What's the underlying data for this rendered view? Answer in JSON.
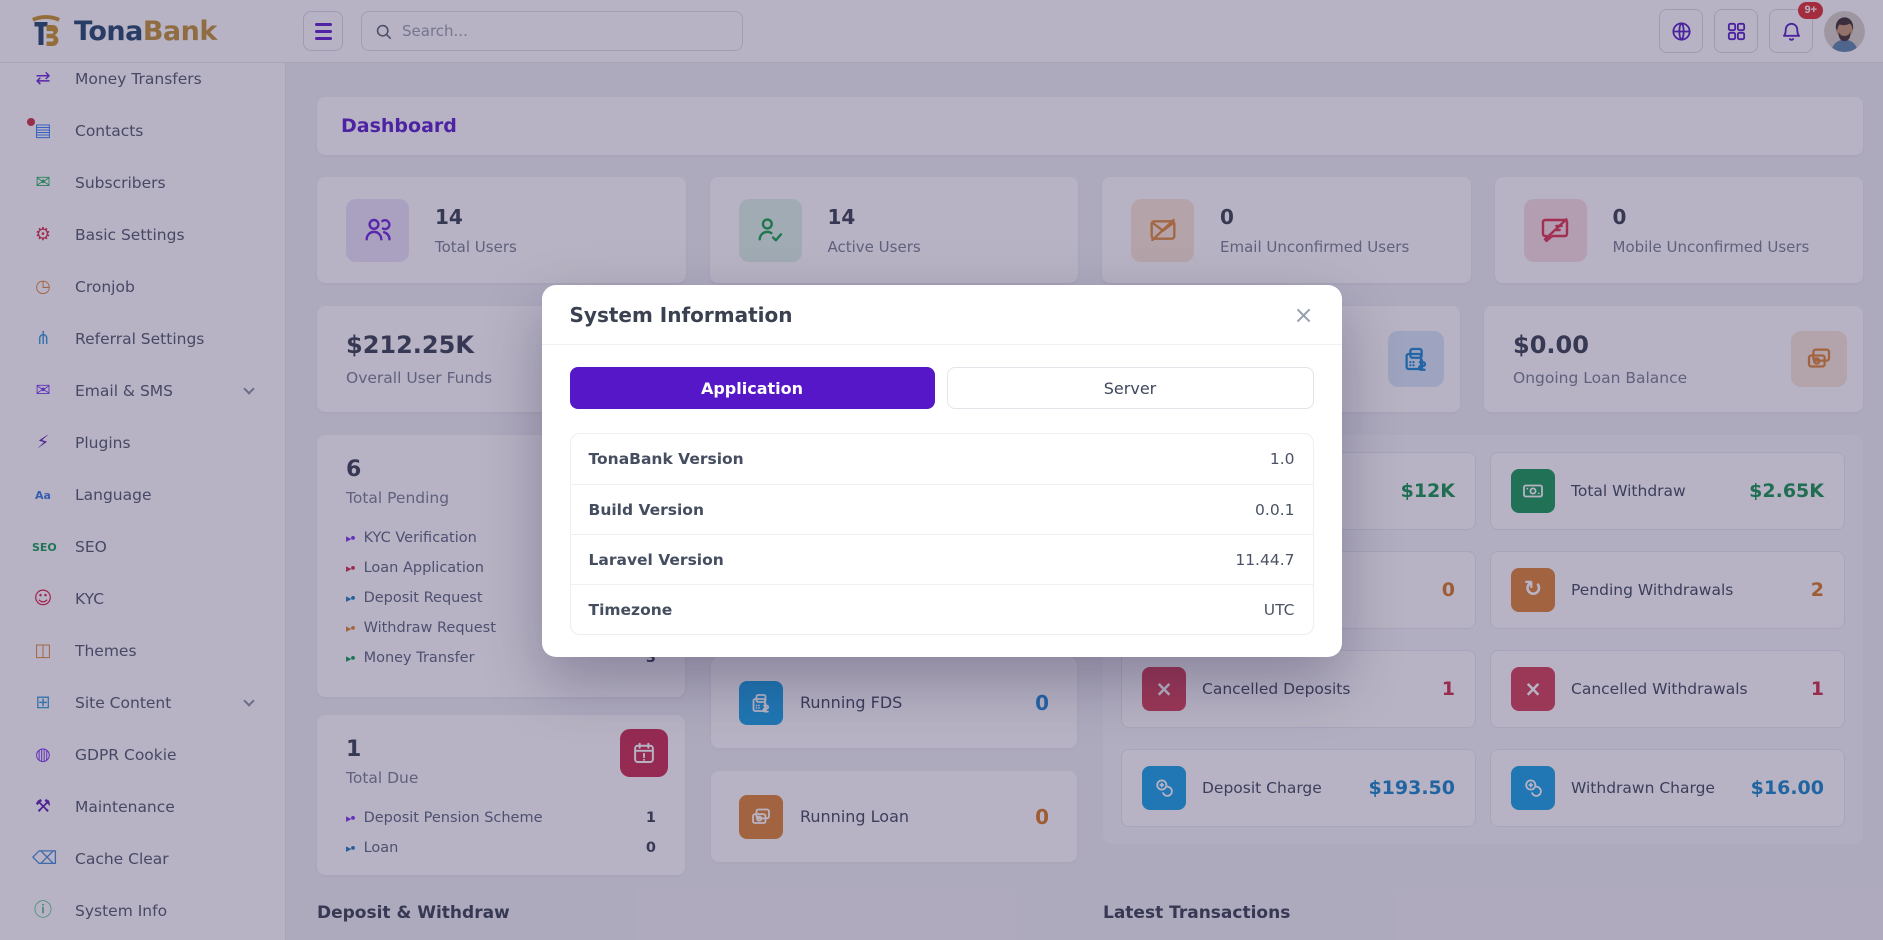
{
  "header": {
    "brand": {
      "name_primary": "Tona",
      "name_secondary": "Bank"
    },
    "search_placeholder": "Search...",
    "notification_badge": "9+",
    "action_icons": [
      "globe-icon",
      "apps-grid-icon",
      "bell-icon",
      "avatar"
    ]
  },
  "sidebar": {
    "items": [
      {
        "label": "Money Transfers",
        "icon": "money-transfers-icon",
        "glyph": "⇄",
        "color": "#6d28d9"
      },
      {
        "label": "Contacts",
        "icon": "contacts-icon",
        "glyph": "▤",
        "color": "#3b82f6",
        "has_dot": true
      },
      {
        "label": "Subscribers",
        "icon": "subscribers-icon",
        "glyph": "✉",
        "color": "#22b35e"
      },
      {
        "label": "Basic Settings",
        "icon": "settings-gear-icon",
        "glyph": "⚙",
        "color": "#d93450"
      },
      {
        "label": "Cronjob",
        "icon": "cronjob-clock-icon",
        "glyph": "◷",
        "color": "#e08a3c"
      },
      {
        "label": "Referral Settings",
        "icon": "referral-icon",
        "glyph": "⋔",
        "color": "#3b9fdc"
      },
      {
        "label": "Email & SMS",
        "icon": "email-sms-icon",
        "glyph": "✉",
        "color": "#7c3aed",
        "has_chevron": true
      },
      {
        "label": "Plugins",
        "icon": "plugins-icon",
        "glyph": "⚡",
        "color": "#5b21b6"
      },
      {
        "label": "Language",
        "icon": "language-icon",
        "glyph": "Aa",
        "color": "#3b7ddd",
        "small_text": true
      },
      {
        "label": "SEO",
        "icon": "seo-icon",
        "glyph": "SEO",
        "color": "#18a058",
        "small_text": true
      },
      {
        "label": "KYC",
        "icon": "kyc-face-icon",
        "glyph": "☺",
        "color": "#e11d48"
      },
      {
        "label": "Themes",
        "icon": "themes-icon",
        "glyph": "◫",
        "color": "#e08a3c"
      },
      {
        "label": "Site Content",
        "icon": "site-content-icon",
        "glyph": "⊞",
        "color": "#3b9fdc",
        "has_chevron": true
      },
      {
        "label": "GDPR Cookie",
        "icon": "cookie-icon",
        "glyph": "◍",
        "color": "#7c3aed"
      },
      {
        "label": "Maintenance",
        "icon": "maintenance-wrench-icon",
        "glyph": "⚒",
        "color": "#5b21b6"
      },
      {
        "label": "Cache Clear",
        "icon": "cache-clear-icon",
        "glyph": "⌫",
        "color": "#4a90d9"
      },
      {
        "label": "System Info",
        "icon": "system-info-icon",
        "glyph": "ⓘ",
        "color": "#22b35e"
      }
    ]
  },
  "breadcrumb": {
    "title": "Dashboard"
  },
  "stats_row": [
    {
      "value": "14",
      "label": "Total Users",
      "icon": "users-icon",
      "icon_bg": "#ece4f9",
      "icon_color": "#6d28d9"
    },
    {
      "value": "14",
      "label": "Active Users",
      "icon": "user-check-icon",
      "icon_bg": "#dcf3e6",
      "icon_color": "#16a34a"
    },
    {
      "value": "0",
      "label": "Email Unconfirmed Users",
      "icon": "email-slash-icon",
      "icon_bg": "#fbe9d8",
      "icon_color": "#e08a3c"
    },
    {
      "value": "0",
      "label": "Mobile Unconfirmed Users",
      "icon": "sms-slash-icon",
      "icon_bg": "#f9dde2",
      "icon_color": "#dc3550"
    }
  ],
  "funds_row": {
    "left": {
      "value": "$212.25K",
      "label": "Overall User Funds",
      "icon": "safebox-dollar-icon",
      "icon_bg": "#d9e9f8",
      "icon_color": "#1b87d2"
    },
    "right": {
      "value": "$0.00",
      "label": "Ongoing Loan Balance",
      "icon": "wallet-icon",
      "icon_bg": "#f9e8d9",
      "icon_color": "#dd8435"
    }
  },
  "pending_card": {
    "value": "6",
    "label": "Total Pending",
    "items": [
      {
        "label": "KYC Verification",
        "value": "",
        "bullet_color": "#7c3aed"
      },
      {
        "label": "Loan Application",
        "value": "",
        "bullet_color": "#d03050"
      },
      {
        "label": "Deposit Request",
        "value": "",
        "bullet_color": "#2080c0"
      },
      {
        "label": "Withdraw Request",
        "value": "",
        "bullet_color": "#df8a30"
      },
      {
        "label": "Money Transfer",
        "value": "3",
        "bullet_color": "#18a058"
      }
    ]
  },
  "due_card": {
    "value": "1",
    "label": "Total Due",
    "icon": "calendar-due-icon",
    "icon_bg": "#cb2e51",
    "items": [
      {
        "label": "Deposit Pension Scheme",
        "value": "1",
        "bullet_color": "#7c3aed"
      },
      {
        "label": "Loan",
        "value": "0",
        "bullet_color": "#2080c0"
      }
    ]
  },
  "running_cards": [
    {
      "label": "Running FDS",
      "value": "0",
      "value_color": "#1f87d6",
      "icon": "safebox-dollar-icon",
      "icon_bg": "#17a3e5"
    },
    {
      "label": "Running Loan",
      "value": "0",
      "value_color": "#d97a1f",
      "icon": "wallet-icon",
      "icon_bg": "#dd8435"
    }
  ],
  "summary": {
    "columns": [
      {
        "cards": [
          {
            "icon": "",
            "label": "",
            "value": "$12K",
            "value_color": "#17954f",
            "icon_bg": ""
          },
          {
            "icon": "",
            "label": "",
            "value": "0",
            "value_color": "#d97a1f",
            "icon_bg": ""
          },
          {
            "icon": "x-icon",
            "label": "Cancelled Deposits",
            "value": "1",
            "value_color": "#cf3148",
            "icon_bg": "#d64258"
          },
          {
            "icon": "coins-icon",
            "label": "Deposit Charge",
            "value": "$193.50",
            "value_color": "#1787c9",
            "icon_bg": "#17a3e5"
          }
        ]
      },
      {
        "cards": [
          {
            "icon": "money-icon",
            "label": "Total Withdraw",
            "value": "$2.65K",
            "value_color": "#17954f",
            "icon_bg": "#189a55"
          },
          {
            "icon": "refresh-icon",
            "label": "Pending Withdrawals",
            "value": "2",
            "value_color": "#d97a1f",
            "icon_bg": "#dd8435"
          },
          {
            "icon": "x-icon",
            "label": "Cancelled Withdrawals",
            "value": "1",
            "value_color": "#cf3148",
            "icon_bg": "#d64258"
          },
          {
            "icon": "coins-icon",
            "label": "Withdrawn Charge",
            "value": "$16.00",
            "value_color": "#1787c9",
            "icon_bg": "#17a3e5"
          }
        ]
      }
    ]
  },
  "section_headings": {
    "left": "Deposit & Withdraw",
    "right": "Latest Transactions"
  },
  "modal": {
    "title": "System Information",
    "close_glyph": "×",
    "tabs": [
      {
        "label": "Application",
        "active": true
      },
      {
        "label": "Server",
        "active": false
      }
    ],
    "rows": [
      {
        "label": "TonaBank Version",
        "value": "1.0"
      },
      {
        "label": "Build Version",
        "value": "0.0.1"
      },
      {
        "label": "Laravel Version",
        "value": "11.44.7"
      },
      {
        "label": "Timezone",
        "value": "UTC"
      }
    ]
  }
}
